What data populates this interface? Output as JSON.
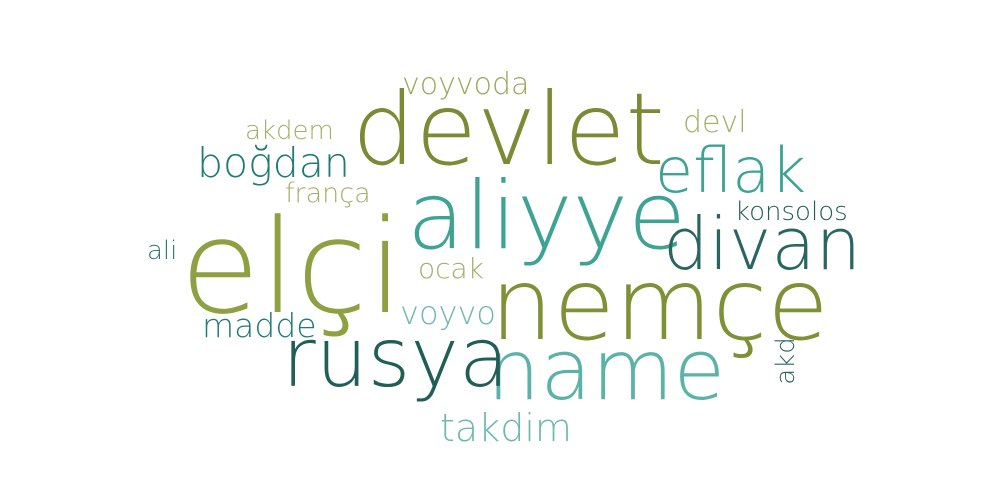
{
  "words": [
    {
      "text": "elçi",
      "color": "#8FA043"
    },
    {
      "text": "devlet",
      "color": "#7C8A35"
    },
    {
      "text": "aliyye",
      "color": "#3FA394"
    },
    {
      "text": "nemçe",
      "color": "#7F9136"
    },
    {
      "text": "name",
      "color": "#5BB3A8"
    },
    {
      "text": "rusya",
      "color": "#215E56"
    },
    {
      "text": "divan",
      "color": "#2A6661"
    },
    {
      "text": "eflak",
      "color": "#3FA394"
    },
    {
      "text": "boğdan",
      "color": "#1F7A74"
    },
    {
      "text": "voyvoda",
      "color": "#9AA85A"
    },
    {
      "text": "akdem",
      "color": "#A3AF68"
    },
    {
      "text": "frança",
      "color": "#A3AF68"
    },
    {
      "text": "ali",
      "color": "#2E7A73"
    },
    {
      "text": "ocak",
      "color": "#A3AF68"
    },
    {
      "text": "madde",
      "color": "#1F7A74"
    },
    {
      "text": "voyvo",
      "color": "#6DB9AE"
    },
    {
      "text": "takdim",
      "color": "#6DB9AE"
    },
    {
      "text": "devl",
      "color": "#A3AF68"
    },
    {
      "text": "konsolos",
      "color": "#215E56"
    },
    {
      "text": "akd",
      "color": "#2A6661"
    }
  ]
}
